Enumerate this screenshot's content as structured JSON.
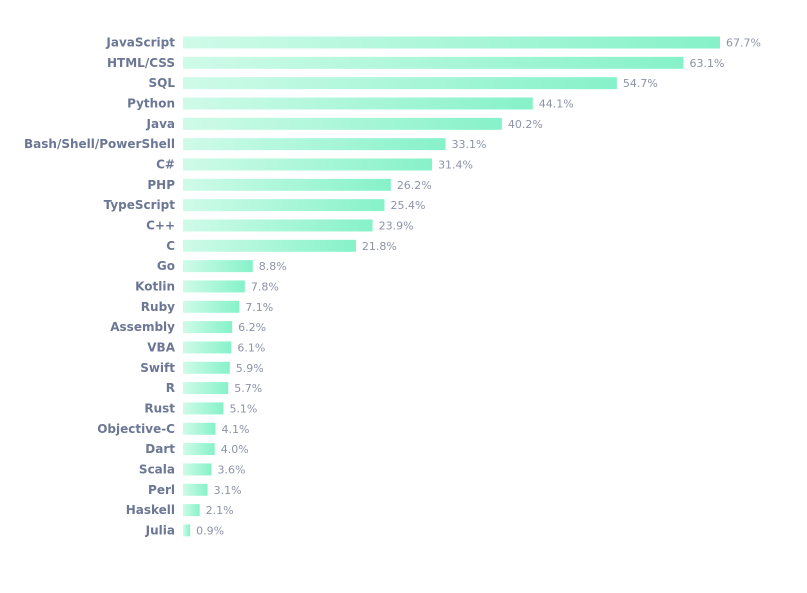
{
  "chart_data": {
    "type": "bar",
    "orientation": "horizontal",
    "categories": [
      "JavaScript",
      "HTML/CSS",
      "SQL",
      "Python",
      "Java",
      "Bash/Shell/PowerShell",
      "C#",
      "PHP",
      "TypeScript",
      "C++",
      "C",
      "Go",
      "Kotlin",
      "Ruby",
      "Assembly",
      "VBA",
      "Swift",
      "R",
      "Rust",
      "Objective-C",
      "Dart",
      "Scala",
      "Perl",
      "Haskell",
      "Julia"
    ],
    "values": [
      67.7,
      63.1,
      54.7,
      44.1,
      40.2,
      33.1,
      31.4,
      26.2,
      25.4,
      23.9,
      21.8,
      8.8,
      7.8,
      7.1,
      6.2,
      6.1,
      5.9,
      5.7,
      5.1,
      4.1,
      4.0,
      3.6,
      3.1,
      2.1,
      0.9
    ],
    "value_labels": [
      "67.7%",
      "63.1%",
      "54.7%",
      "44.1%",
      "40.2%",
      "33.1%",
      "31.4%",
      "26.2%",
      "25.4%",
      "23.9%",
      "21.8%",
      "8.8%",
      "7.8%",
      "7.1%",
      "6.2%",
      "6.1%",
      "5.9%",
      "5.7%",
      "5.1%",
      "4.1%",
      "4.0%",
      "3.6%",
      "3.1%",
      "2.1%",
      "0.9%"
    ],
    "title": "",
    "xlabel": "",
    "ylabel": "",
    "value_unit": "%",
    "grid": false,
    "legend": "none",
    "colors": {
      "bar_start": "#cffbe9",
      "bar_end": "#86f2c9",
      "category_text": "#6b7794",
      "value_text": "#8c93a8"
    }
  }
}
